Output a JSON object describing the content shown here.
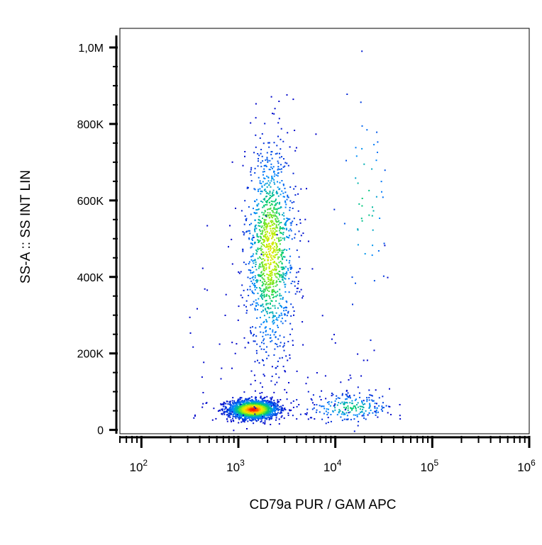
{
  "chart_data": {
    "type": "scatter",
    "style": "flow cytometry density dot plot (blue → green → yellow → red)",
    "xlabel": "CD79a PUR / GAM APC",
    "ylabel": "SS-A :: SS INT LIN",
    "x_scale": "log",
    "xlim": [
      60,
      1000000
    ],
    "ylim": [
      -10000,
      1050000
    ],
    "x_ticks": [
      {
        "value": 100,
        "base": "10",
        "exp": "2"
      },
      {
        "value": 1000,
        "base": "10",
        "exp": "3"
      },
      {
        "value": 10000,
        "base": "10",
        "exp": "4"
      },
      {
        "value": 100000,
        "base": "10",
        "exp": "5"
      },
      {
        "value": 1000000,
        "base": "10",
        "exp": "6"
      }
    ],
    "y_ticks": [
      {
        "value": 0,
        "label": "0"
      },
      {
        "value": 200000,
        "label": "200K"
      },
      {
        "value": 400000,
        "label": "400K"
      },
      {
        "value": 600000,
        "label": "600K"
      },
      {
        "value": 800000,
        "label": "800K"
      },
      {
        "value": 1000000,
        "label": "1,0M"
      }
    ],
    "populations": [
      {
        "x_center": 1400,
        "x_spread_decades": 0.13,
        "y_center": 55000,
        "y_spread": 13000,
        "relative_density": 1.0
      },
      {
        "x_center": 2100,
        "x_spread_decades": 0.13,
        "y_center": 470000,
        "y_spread": 140000,
        "relative_density": 0.75
      },
      {
        "x_center": 14000,
        "x_spread_decades": 0.22,
        "y_center": 60000,
        "y_spread": 18000,
        "relative_density": 0.12
      },
      {
        "x_center": 20000,
        "x_spread_decades": 0.14,
        "y_center": 600000,
        "y_spread": 140000,
        "relative_density": 0.03
      }
    ],
    "grid": false,
    "legend": "none",
    "colors": {
      "low": "#0000cc",
      "mid": "#00cc66",
      "high_mid": "#ffee00",
      "high": "#ff0000"
    }
  }
}
